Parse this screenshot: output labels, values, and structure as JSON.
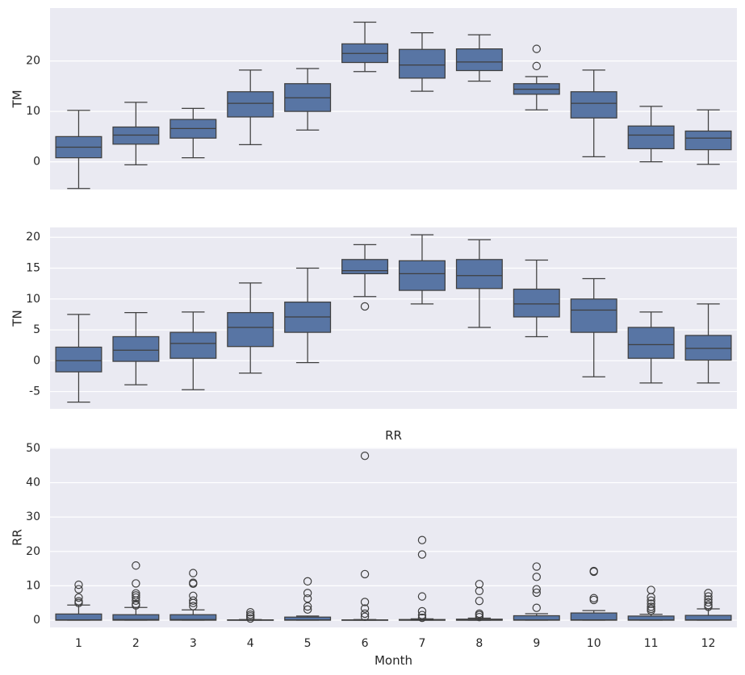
{
  "colors": {
    "panel_bg": "#eaeaf2",
    "grid": "#ffffff",
    "box_fill": "#5875a4",
    "line": "#3f3f3f"
  },
  "chart_data": [
    {
      "type": "box",
      "title": "",
      "xlabel": "",
      "ylabel": "TM",
      "ylim": [
        -5.5,
        30.5
      ],
      "yticks": [
        0,
        10,
        20
      ],
      "categories": [
        "1",
        "2",
        "3",
        "4",
        "5",
        "6",
        "7",
        "8",
        "9",
        "10",
        "11",
        "12"
      ],
      "grid": true,
      "boxes": [
        {
          "whislo": -5.3,
          "q1": 0.8,
          "med": 2.9,
          "q3": 5.0,
          "whishi": 10.2,
          "fliers": []
        },
        {
          "whislo": -0.6,
          "q1": 3.5,
          "med": 5.3,
          "q3": 6.9,
          "whishi": 11.8,
          "fliers": []
        },
        {
          "whislo": 0.8,
          "q1": 4.7,
          "med": 6.6,
          "q3": 8.4,
          "whishi": 10.6,
          "fliers": []
        },
        {
          "whislo": 3.4,
          "q1": 8.9,
          "med": 11.6,
          "q3": 13.9,
          "whishi": 18.2,
          "fliers": []
        },
        {
          "whislo": 6.3,
          "q1": 10.0,
          "med": 12.7,
          "q3": 15.5,
          "whishi": 18.5,
          "fliers": []
        },
        {
          "whislo": 17.9,
          "q1": 19.7,
          "med": 21.5,
          "q3": 23.4,
          "whishi": 27.7,
          "fliers": []
        },
        {
          "whislo": 14.0,
          "q1": 16.6,
          "med": 19.2,
          "q3": 22.3,
          "whishi": 25.6,
          "fliers": []
        },
        {
          "whislo": 16.0,
          "q1": 18.1,
          "med": 19.8,
          "q3": 22.4,
          "whishi": 25.2,
          "fliers": []
        },
        {
          "whislo": 10.3,
          "q1": 13.4,
          "med": 14.4,
          "q3": 15.5,
          "whishi": 16.9,
          "fliers": [
            22.4,
            19.0
          ]
        },
        {
          "whislo": 1.0,
          "q1": 8.7,
          "med": 11.6,
          "q3": 13.9,
          "whishi": 18.2,
          "fliers": []
        },
        {
          "whislo": 0.0,
          "q1": 2.6,
          "med": 5.3,
          "q3": 7.1,
          "whishi": 11.0,
          "fliers": []
        },
        {
          "whislo": -0.5,
          "q1": 2.4,
          "med": 4.7,
          "q3": 6.1,
          "whishi": 10.3,
          "fliers": []
        }
      ]
    },
    {
      "type": "box",
      "title": "",
      "xlabel": "",
      "ylabel": "TN",
      "ylim": [
        -7.8,
        21.6
      ],
      "yticks": [
        -5,
        0,
        5,
        10,
        15,
        20
      ],
      "categories": [
        "1",
        "2",
        "3",
        "4",
        "5",
        "6",
        "7",
        "8",
        "9",
        "10",
        "11",
        "12"
      ],
      "grid": true,
      "boxes": [
        {
          "whislo": -6.7,
          "q1": -1.8,
          "med": 0.0,
          "q3": 2.2,
          "whishi": 7.5,
          "fliers": []
        },
        {
          "whislo": -3.9,
          "q1": -0.1,
          "med": 1.7,
          "q3": 3.9,
          "whishi": 7.8,
          "fliers": []
        },
        {
          "whislo": -4.7,
          "q1": 0.4,
          "med": 2.8,
          "q3": 4.6,
          "whishi": 7.9,
          "fliers": []
        },
        {
          "whislo": -2.0,
          "q1": 2.3,
          "med": 5.4,
          "q3": 7.8,
          "whishi": 12.6,
          "fliers": []
        },
        {
          "whislo": -0.3,
          "q1": 4.6,
          "med": 7.1,
          "q3": 9.5,
          "whishi": 15.0,
          "fliers": []
        },
        {
          "whislo": 10.4,
          "q1": 14.1,
          "med": 14.6,
          "q3": 16.4,
          "whishi": 18.8,
          "fliers": [
            8.8
          ]
        },
        {
          "whislo": 9.2,
          "q1": 11.4,
          "med": 14.1,
          "q3": 16.2,
          "whishi": 20.4,
          "fliers": []
        },
        {
          "whislo": 5.4,
          "q1": 11.7,
          "med": 13.8,
          "q3": 16.4,
          "whishi": 19.6,
          "fliers": []
        },
        {
          "whislo": 3.9,
          "q1": 7.1,
          "med": 9.2,
          "q3": 11.6,
          "whishi": 16.3,
          "fliers": []
        },
        {
          "whislo": -2.6,
          "q1": 4.6,
          "med": 8.2,
          "q3": 10.0,
          "whishi": 13.3,
          "fliers": []
        },
        {
          "whislo": -3.6,
          "q1": 0.4,
          "med": 2.6,
          "q3": 5.4,
          "whishi": 7.9,
          "fliers": []
        },
        {
          "whislo": -3.6,
          "q1": 0.1,
          "med": 2.0,
          "q3": 4.1,
          "whishi": 9.2,
          "fliers": []
        }
      ]
    },
    {
      "type": "box",
      "title": "RR",
      "xlabel": "Month",
      "ylabel": "RR",
      "ylim": [
        -2.1,
        50.2
      ],
      "yticks": [
        0,
        10,
        20,
        30,
        40,
        50
      ],
      "categories": [
        "1",
        "2",
        "3",
        "4",
        "5",
        "6",
        "7",
        "8",
        "9",
        "10",
        "11",
        "12"
      ],
      "grid": true,
      "boxes": [
        {
          "whislo": 0.0,
          "q1": 0.0,
          "med": 0.1,
          "q3": 1.8,
          "whishi": 4.4,
          "fliers": [
            10.3,
            9.0,
            6.6,
            5.5,
            5.0
          ]
        },
        {
          "whislo": 0.0,
          "q1": 0.0,
          "med": 0.2,
          "q3": 1.6,
          "whishi": 3.7,
          "fliers": [
            15.9,
            10.7,
            7.8,
            7.2,
            6.6,
            5.7,
            4.7,
            4.3
          ]
        },
        {
          "whislo": 0.0,
          "q1": 0.0,
          "med": 0.2,
          "q3": 1.6,
          "whishi": 3.0,
          "fliers": [
            13.7,
            10.9,
            10.6,
            7.1,
            5.7,
            5.0,
            4.1
          ]
        },
        {
          "whislo": 0.0,
          "q1": 0.0,
          "med": 0.0,
          "q3": 0.1,
          "whishi": 0.2,
          "fliers": [
            2.3,
            1.6,
            1.1,
            0.5
          ]
        },
        {
          "whislo": 0.0,
          "q1": 0.0,
          "med": 0.1,
          "q3": 0.9,
          "whishi": 1.2,
          "fliers": [
            11.3,
            7.9,
            6.3,
            4.0,
            3.1
          ]
        },
        {
          "whislo": 0.0,
          "q1": 0.0,
          "med": 0.0,
          "q3": 0.1,
          "whishi": 0.2,
          "fliers": [
            47.8,
            13.4,
            5.3,
            3.4,
            1.9,
            1.0
          ]
        },
        {
          "whislo": 0.0,
          "q1": 0.0,
          "med": 0.0,
          "q3": 0.2,
          "whishi": 0.4,
          "fliers": [
            23.3,
            19.1,
            6.9,
            2.6,
            1.5,
            0.7
          ]
        },
        {
          "whislo": 0.0,
          "q1": 0.0,
          "med": 0.0,
          "q3": 0.3,
          "whishi": 0.6,
          "fliers": [
            10.5,
            8.5,
            5.6,
            1.9,
            1.5,
            0.9
          ]
        },
        {
          "whislo": 0.0,
          "q1": 0.0,
          "med": 0.1,
          "q3": 1.3,
          "whishi": 1.9,
          "fliers": [
            15.6,
            12.6,
            9.0,
            8.0,
            3.6
          ]
        },
        {
          "whislo": 0.0,
          "q1": 0.0,
          "med": 0.1,
          "q3": 2.1,
          "whishi": 2.8,
          "fliers": [
            14.3,
            14.1,
            6.4,
            5.9
          ]
        },
        {
          "whislo": 0.0,
          "q1": 0.0,
          "med": 0.1,
          "q3": 1.2,
          "whishi": 1.7,
          "fliers": [
            8.8,
            6.7,
            5.7,
            4.8,
            3.9,
            3.3,
            2.8
          ]
        },
        {
          "whislo": 0.0,
          "q1": 0.0,
          "med": 0.1,
          "q3": 1.4,
          "whishi": 3.3,
          "fliers": [
            7.9,
            6.9,
            6.0,
            5.2,
            4.4,
            3.9
          ]
        }
      ]
    }
  ]
}
